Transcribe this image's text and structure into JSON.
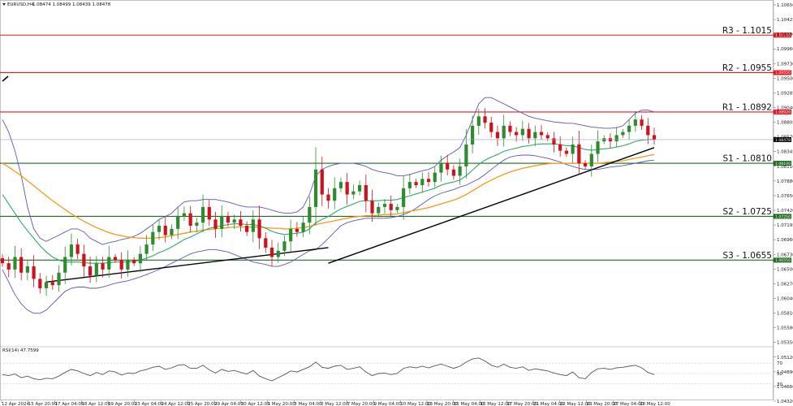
{
  "header": {
    "symbol": "EURUSD,H4",
    "ohlc": "1.08474 1.08499 1.08439 1.08478"
  },
  "indicator": {
    "label": "RSI(14) 47.7599"
  },
  "colors": {
    "bull": "#2e8b2e",
    "bear": "#d0101a",
    "resistance": "#e8151e",
    "support": "#1d6b1d",
    "bb": "#5b57b5",
    "ma_short": "#2fa86a",
    "ma_long": "#f39a1a",
    "trend": "#000000",
    "rsi": "#555555"
  },
  "chart_data": {
    "type": "candlestick",
    "symbol": "EURUSD",
    "timeframe": "H4",
    "ylim": [
      1.0432,
      1.1066
    ],
    "y_ticks": [
      "1.10650",
      "1.10425",
      "1.10190",
      "1.09960",
      "1.09730",
      "1.09500",
      "1.09285",
      "1.09040",
      "1.08805",
      "1.08570",
      "1.08345",
      "1.08110",
      "1.07880",
      "1.07650",
      "1.07420",
      "1.07195",
      "1.06960",
      "1.06730",
      "1.06500",
      "1.06270",
      "1.06040",
      "1.05810",
      "1.05580",
      "1.05350",
      "1.05120",
      "1.04890",
      "1.04660",
      "1.04320"
    ],
    "x_ticks": [
      "12 Apr 2024",
      "15 Apr 20:00",
      "17 Apr 04:00",
      "18 Apr 12:00",
      "19 Apr 20:00",
      "23 Apr 04:00",
      "24 Apr 12:00",
      "25 Apr 20:00",
      "29 Apr 04:00",
      "30 Apr 12:00",
      "1 May 20:00",
      "3 May 04:00",
      "6 May 12:00",
      "7 May 20:00",
      "9 May 04:00",
      "10 May 12:00",
      "13 May 20:00",
      "15 May 04:00",
      "16 May 12:00",
      "17 May 20:00",
      "21 May 04:00",
      "22 May 12:00",
      "23 May 20:00",
      "27 May 04:00",
      "28 May 12:00"
    ],
    "current_price": 1.08478,
    "current_price_label": "1.08478",
    "levels": [
      {
        "name": "R3 - 1.1015",
        "kind": "resistance",
        "value": 1.1015,
        "label": "1.10150"
      },
      {
        "name": "R2 - 1.0955",
        "kind": "resistance",
        "value": 1.0955,
        "label": "1.09550"
      },
      {
        "name": "R1 - 1.0892",
        "kind": "resistance",
        "value": 1.0892,
        "label": "1.08920"
      },
      {
        "name": "S1 - 1.0810",
        "kind": "support",
        "value": 1.081,
        "label": "1.08100"
      },
      {
        "name": "S2 - 1.0725",
        "kind": "support",
        "value": 1.0725,
        "label": "1.07250"
      },
      {
        "name": "S3 - 1.0655",
        "kind": "support",
        "value": 1.0655,
        "label": "1.06550"
      }
    ],
    "closes": [
      1.065,
      1.064,
      1.066,
      1.0635,
      1.0645,
      1.0625,
      1.061,
      1.062,
      1.0615,
      1.0635,
      1.066,
      1.068,
      1.0665,
      1.0645,
      1.063,
      1.065,
      1.064,
      1.066,
      1.0655,
      1.064,
      1.0655,
      1.065,
      1.0665,
      1.068,
      1.07,
      1.071,
      1.0695,
      1.0705,
      1.0725,
      1.073,
      1.071,
      1.0715,
      1.074,
      1.072,
      1.0705,
      1.0725,
      1.0715,
      1.072,
      1.071,
      1.07,
      1.072,
      1.069,
      1.0675,
      1.066,
      1.067,
      1.0685,
      1.0705,
      1.07,
      1.0715,
      1.074,
      1.08,
      1.076,
      1.075,
      1.077,
      1.078,
      1.076,
      1.0765,
      1.0775,
      1.075,
      1.073,
      1.074,
      1.0745,
      1.0735,
      1.074,
      1.077,
      1.078,
      1.0775,
      1.0785,
      1.078,
      1.0795,
      1.081,
      1.08,
      1.079,
      1.0805,
      1.084,
      1.087,
      1.0885,
      1.0875,
      1.086,
      1.085,
      1.087,
      1.086,
      1.0855,
      1.0865,
      1.085,
      1.086,
      1.0855,
      1.085,
      1.084,
      1.083,
      1.0825,
      1.084,
      1.081,
      1.0805,
      1.0825,
      1.0845,
      1.085,
      1.0845,
      1.0855,
      1.086,
      1.087,
      1.088,
      1.087,
      1.0855,
      1.0848
    ],
    "ma_long": [
      1.081,
      1.0804,
      1.0797,
      1.079,
      1.0782,
      1.0774,
      1.0766,
      1.0758,
      1.075,
      1.0743,
      1.0736,
      1.0729,
      1.0723,
      1.0717,
      1.0712,
      1.0707,
      1.0703,
      1.0699,
      1.0696,
      1.0694,
      1.0692,
      1.0691,
      1.069,
      1.069,
      1.069,
      1.0691,
      1.0692,
      1.0694,
      1.0696,
      1.0698,
      1.07,
      1.0701,
      1.0703,
      1.0704,
      1.0705,
      1.0706,
      1.0707,
      1.0708,
      1.0708,
      1.0708,
      1.0708,
      1.0708,
      1.0707,
      1.0706,
      1.0706,
      1.0705,
      1.0705,
      1.0706,
      1.0707,
      1.0709,
      1.0712,
      1.0714,
      1.0716,
      1.0718,
      1.072,
      1.0722,
      1.0724,
      1.0725,
      1.0726,
      1.0726,
      1.0727,
      1.0728,
      1.0728,
      1.0729,
      1.0731,
      1.0733,
      1.0735,
      1.0737,
      1.0739,
      1.0742,
      1.0745,
      1.0748,
      1.0751,
      1.0755,
      1.076,
      1.0766,
      1.0772,
      1.0778,
      1.0783,
      1.0788,
      1.0792,
      1.0796,
      1.0799,
      1.0802,
      1.0804,
      1.0806,
      1.0808,
      1.0809,
      1.081,
      1.081,
      1.081,
      1.081,
      1.081,
      1.081,
      1.081,
      1.081,
      1.0811,
      1.0812,
      1.0813,
      1.0814,
      1.0816,
      1.0818,
      1.082,
      1.0822,
      1.0824
    ],
    "ma_short": [
      1.076,
      1.0745,
      1.073,
      1.0715,
      1.0702,
      1.069,
      1.0678,
      1.0668,
      1.066,
      1.0655,
      1.0652,
      1.0652,
      1.0652,
      1.0651,
      1.065,
      1.065,
      1.065,
      1.0651,
      1.0652,
      1.0652,
      1.0652,
      1.0653,
      1.0655,
      1.0658,
      1.0662,
      1.0667,
      1.0671,
      1.0676,
      1.0682,
      1.0688,
      1.0692,
      1.0697,
      1.0702,
      1.0706,
      1.0708,
      1.071,
      1.0712,
      1.0713,
      1.0713,
      1.0712,
      1.0712,
      1.071,
      1.0706,
      1.0701,
      1.0698,
      1.0696,
      1.0697,
      1.0698,
      1.07,
      1.0705,
      1.0715,
      1.072,
      1.0725,
      1.0731,
      1.0737,
      1.0741,
      1.0745,
      1.0749,
      1.075,
      1.075,
      1.075,
      1.0751,
      1.0751,
      1.0752,
      1.0755,
      1.0758,
      1.0761,
      1.0764,
      1.0767,
      1.077,
      1.0775,
      1.0778,
      1.078,
      1.0783,
      1.079,
      1.0799,
      1.0808,
      1.0815,
      1.082,
      1.0824,
      1.0829,
      1.0832,
      1.0834,
      1.0837,
      1.0838,
      1.084,
      1.0841,
      1.0841,
      1.0841,
      1.084,
      1.0838,
      1.0838,
      1.0835,
      1.0832,
      1.0831,
      1.0832,
      1.0833,
      1.0834,
      1.0836,
      1.0838,
      1.0841,
      1.0845,
      1.0847,
      1.0848,
      1.0848
    ],
    "bb_upper": [
      1.088,
      1.086,
      1.083,
      1.079,
      1.074,
      1.0705,
      1.069,
      1.0685,
      1.069,
      1.0695,
      1.07,
      1.0705,
      1.0705,
      1.07,
      1.069,
      1.0685,
      1.068,
      1.0683,
      1.0685,
      1.0688,
      1.069,
      1.0693,
      1.0698,
      1.0705,
      1.0712,
      1.072,
      1.0725,
      1.073,
      1.074,
      1.0748,
      1.075,
      1.075,
      1.0752,
      1.0752,
      1.0752,
      1.075,
      1.0748,
      1.0745,
      1.0742,
      1.074,
      1.074,
      1.074,
      1.0738,
      1.0735,
      1.0732,
      1.073,
      1.073,
      1.0732,
      1.074,
      1.076,
      1.079,
      1.08,
      1.0805,
      1.0808,
      1.081,
      1.081,
      1.081,
      1.0808,
      1.0805,
      1.08,
      1.0797,
      1.0795,
      1.0793,
      1.079,
      1.079,
      1.0792,
      1.0795,
      1.0798,
      1.08,
      1.0805,
      1.0815,
      1.0822,
      1.0828,
      1.0835,
      1.0855,
      1.088,
      1.0905,
      1.0915,
      1.0915,
      1.091,
      1.0905,
      1.09,
      1.0895,
      1.089,
      1.0885,
      1.0882,
      1.088,
      1.0878,
      1.0876,
      1.0875,
      1.0874,
      1.0874,
      1.0872,
      1.087,
      1.0868,
      1.0867,
      1.0866,
      1.0866,
      1.0867,
      1.087,
      1.088,
      1.089,
      1.0895,
      1.0895,
      1.0892
    ],
    "bb_lower": [
      1.064,
      1.062,
      1.06,
      1.0585,
      1.0575,
      1.057,
      1.057,
      1.0575,
      1.0585,
      1.0595,
      1.0605,
      1.061,
      1.0612,
      1.0612,
      1.061,
      1.061,
      1.0612,
      1.0615,
      1.0618,
      1.062,
      1.0622,
      1.0625,
      1.0628,
      1.0632,
      1.0636,
      1.064,
      1.0645,
      1.065,
      1.0655,
      1.066,
      1.0665,
      1.0668,
      1.067,
      1.0672,
      1.0672,
      1.067,
      1.0668,
      1.0664,
      1.066,
      1.0656,
      1.0652,
      1.065,
      1.0648,
      1.0645,
      1.0645,
      1.0648,
      1.0652,
      1.0658,
      1.0664,
      1.067,
      1.0672,
      1.068,
      1.069,
      1.07,
      1.071,
      1.0715,
      1.0718,
      1.072,
      1.0722,
      1.0722,
      1.0722,
      1.0722,
      1.0723,
      1.0725,
      1.0728,
      1.0732,
      1.0738,
      1.0745,
      1.0752,
      1.0758,
      1.0762,
      1.0765,
      1.0768,
      1.0772,
      1.0775,
      1.078,
      1.0785,
      1.0792,
      1.08,
      1.0808,
      1.0815,
      1.082,
      1.0822,
      1.0823,
      1.0823,
      1.0822,
      1.082,
      1.0818,
      1.0815,
      1.0812,
      1.0808,
      1.0805,
      1.0802,
      1.08,
      1.08,
      1.08,
      1.0802,
      1.0804,
      1.0805,
      1.0806,
      1.0808,
      1.081,
      1.0812,
      1.0814,
      1.0815
    ],
    "trendlines": [
      {
        "points": [
          [
            7,
            1.062
          ],
          [
            52,
            1.0675
          ]
        ]
      },
      {
        "points": [
          [
            52,
            1.065
          ],
          [
            104,
            1.0835
          ]
        ]
      }
    ],
    "rsi": {
      "ylim": [
        0,
        100
      ],
      "ticks": [
        70,
        50,
        30
      ],
      "tick_labels": [
        "70",
        "50",
        "30"
      ],
      "current": 47.7599,
      "values": [
        48,
        46,
        49,
        42,
        45,
        40,
        38,
        41,
        40,
        45,
        52,
        58,
        55,
        50,
        46,
        52,
        48,
        55,
        53,
        47,
        51,
        50,
        55,
        58,
        62,
        64,
        58,
        61,
        66,
        67,
        60,
        60,
        66,
        57,
        51,
        58,
        54,
        56,
        52,
        49,
        56,
        45,
        40,
        36,
        42,
        48,
        55,
        53,
        58,
        63,
        72,
        62,
        60,
        64,
        66,
        58,
        60,
        63,
        53,
        46,
        50,
        51,
        48,
        50,
        60,
        63,
        61,
        64,
        61,
        65,
        68,
        64,
        60,
        64,
        72,
        78,
        80,
        74,
        66,
        62,
        68,
        62,
        60,
        63,
        56,
        59,
        57,
        55,
        51,
        48,
        46,
        53,
        42,
        40,
        52,
        59,
        60,
        58,
        61,
        62,
        64,
        66,
        61,
        52,
        48
      ]
    }
  }
}
